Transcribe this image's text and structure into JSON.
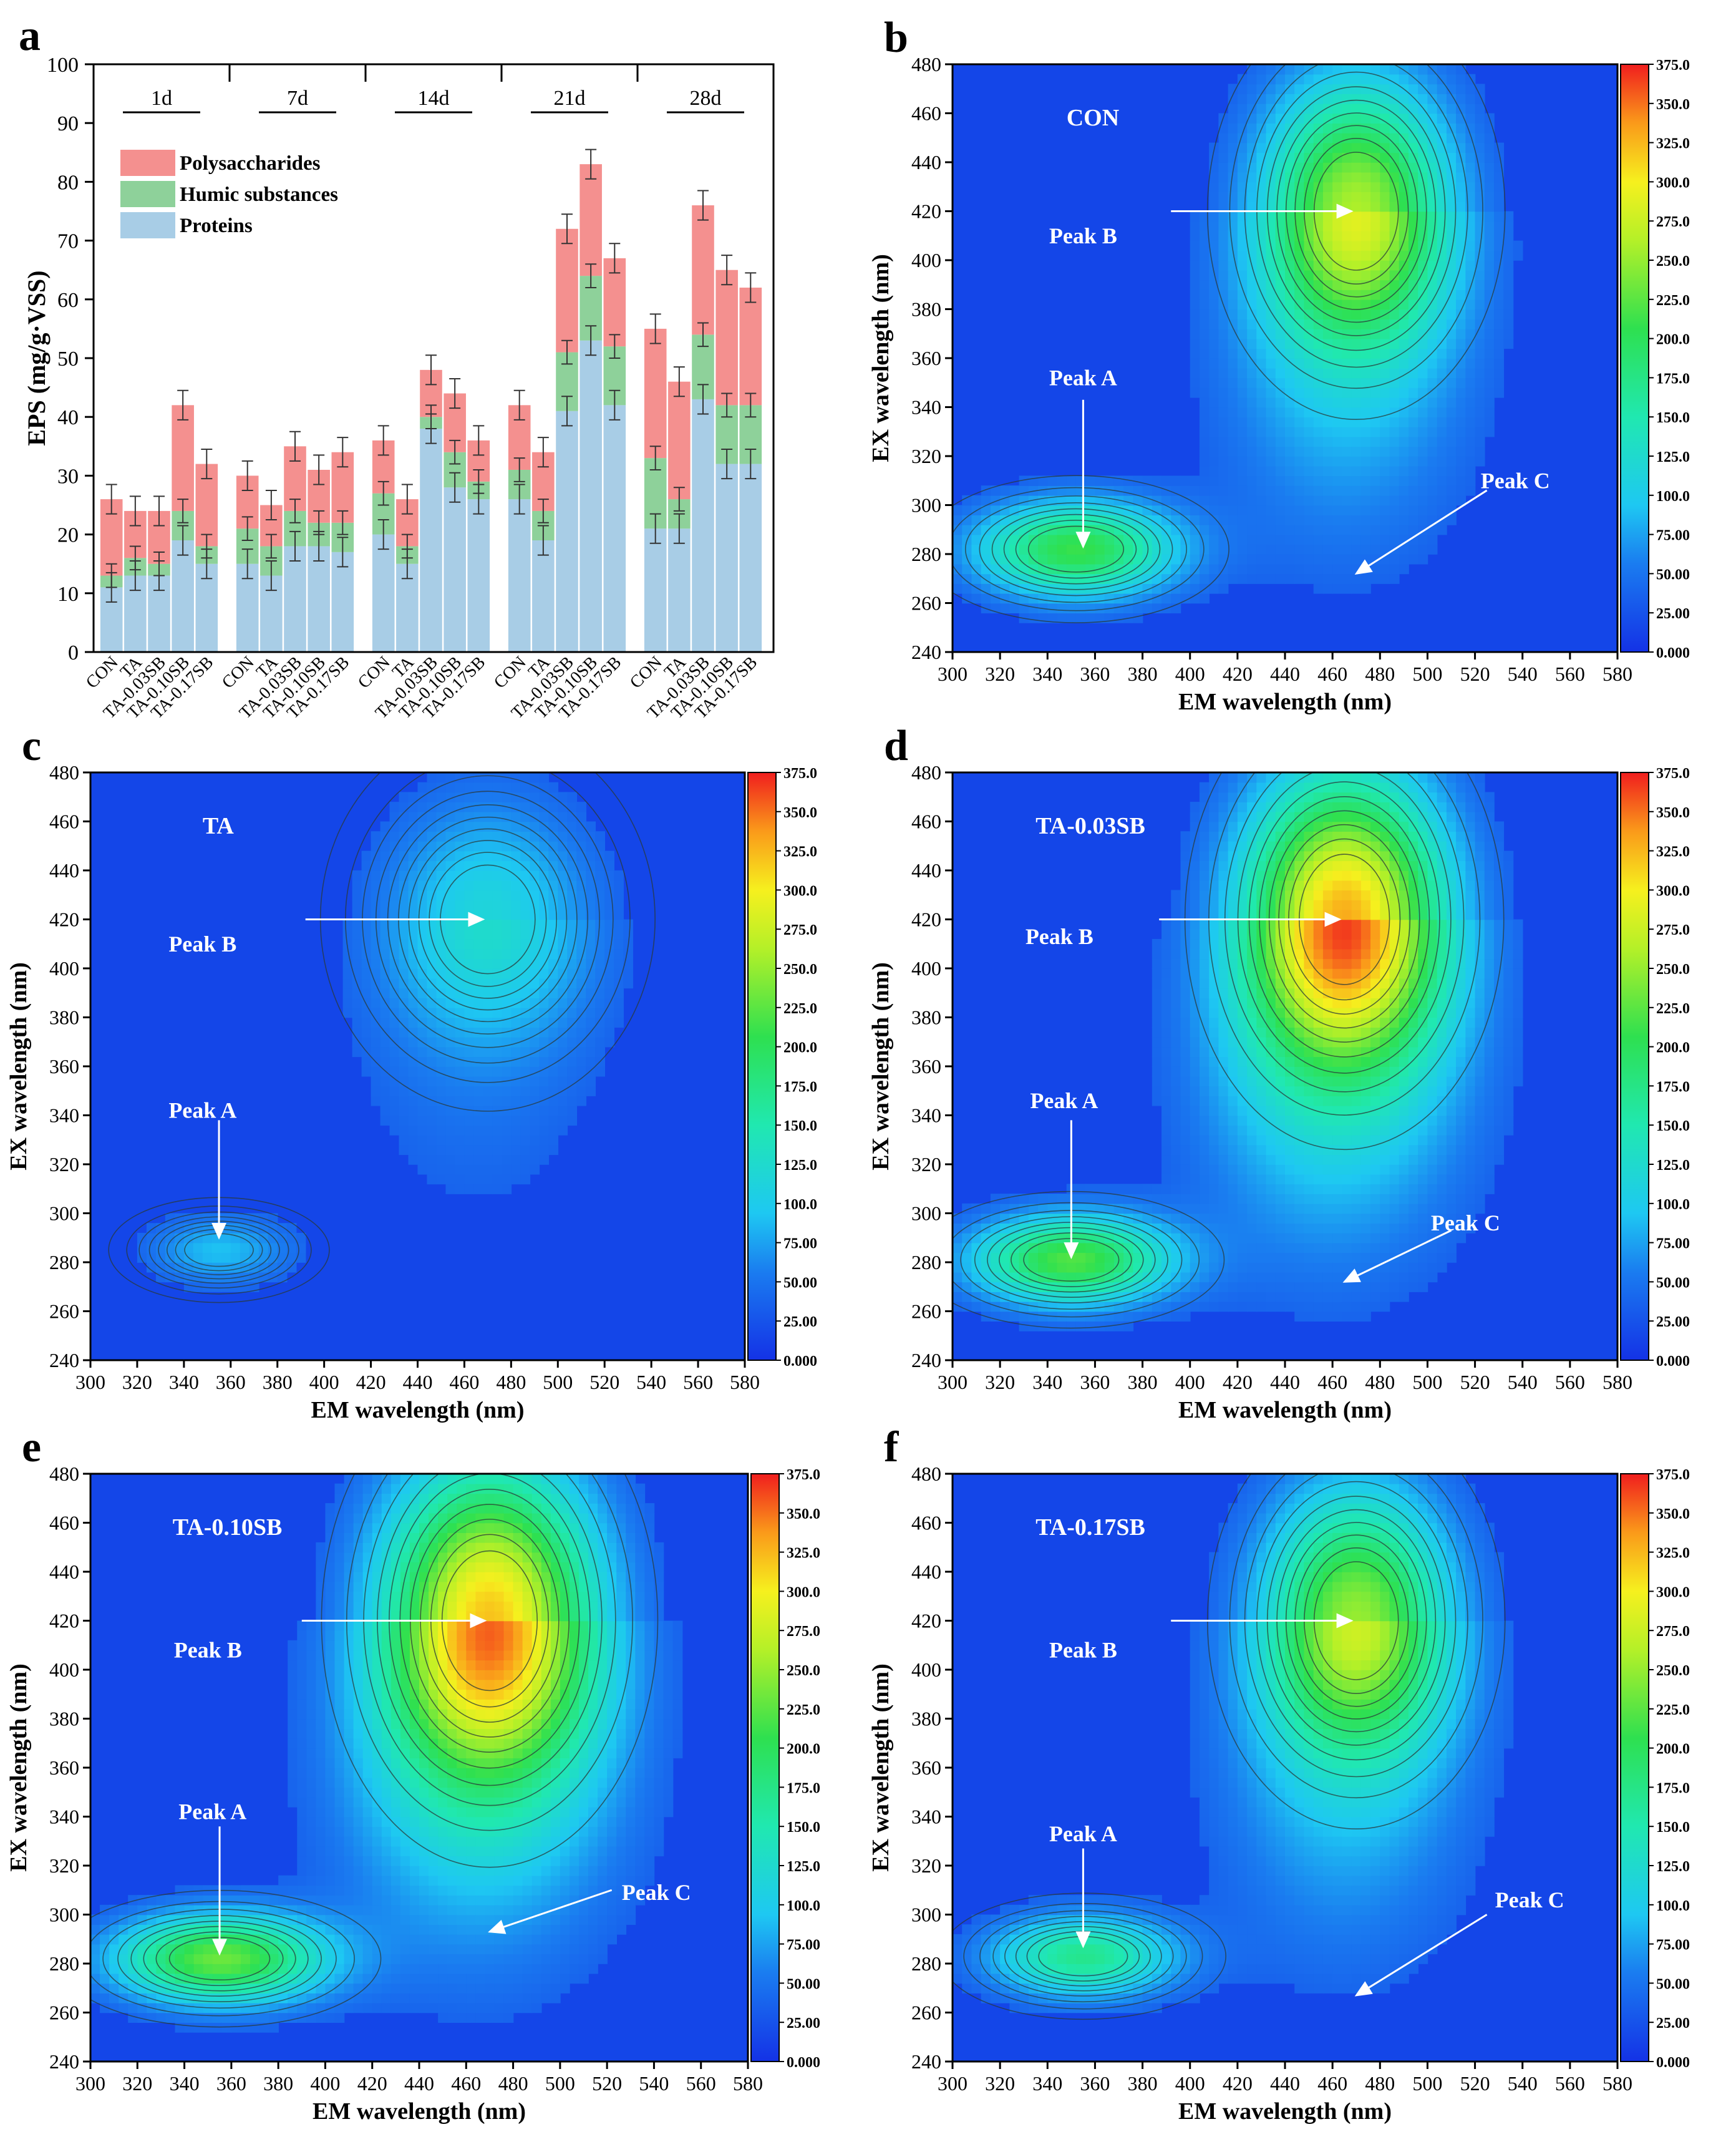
{
  "figure_title": "EPS and 3D-EEM fluorescence spectra",
  "colors": {
    "polysaccharides": "#f4908f",
    "humic": "#8ed19a",
    "proteins": "#a8cde6",
    "axis": "#000000",
    "eem_bg": "#1446e8",
    "arrow": "#ffffff"
  },
  "chart_data": [
    {
      "panel": "a",
      "type": "bar",
      "stacked": true,
      "ylabel": "EPS (mg/g·VSS)",
      "ylim": [
        0,
        100
      ],
      "yticks": [
        0,
        10,
        20,
        30,
        40,
        50,
        60,
        70,
        80,
        90,
        100
      ],
      "legend": [
        "Polysaccharides",
        "Humic substances",
        "Proteins"
      ],
      "legend_position": "top-left",
      "groups": [
        {
          "label": "1d",
          "categories": [
            "CON",
            "TA",
            "TA-0.03SB",
            "TA-0.10SB",
            "TA-0.17SB"
          ],
          "proteins": [
            11,
            13,
            13,
            19,
            15
          ],
          "humic": [
            2,
            3,
            2,
            5,
            3
          ],
          "polysaccharides": [
            13,
            8,
            9,
            18,
            14
          ]
        },
        {
          "label": "7d",
          "categories": [
            "CON",
            "TA",
            "TA-0.03SB",
            "TA-0.10SB",
            "TA-0.17SB"
          ],
          "proteins": [
            15,
            13,
            18,
            18,
            17
          ],
          "humic": [
            6,
            5,
            6,
            4,
            5
          ],
          "polysaccharides": [
            9,
            7,
            11,
            9,
            12
          ]
        },
        {
          "label": "14d",
          "categories": [
            "CON",
            "TA",
            "TA-0.03SB",
            "TA-0.10SB",
            "TA-0.17SB"
          ],
          "proteins": [
            20,
            15,
            38,
            28,
            26
          ],
          "humic": [
            7,
            3,
            2,
            6,
            3
          ],
          "polysaccharides": [
            9,
            8,
            8,
            10,
            7
          ]
        },
        {
          "label": "21d",
          "categories": [
            "CON",
            "TA",
            "TA-0.03SB",
            "TA-0.10SB",
            "TA-0.17SB"
          ],
          "proteins": [
            26,
            19,
            41,
            53,
            42
          ],
          "humic": [
            5,
            5,
            10,
            11,
            10
          ],
          "polysaccharides": [
            11,
            10,
            21,
            19,
            15
          ]
        },
        {
          "label": "28d",
          "categories": [
            "CON",
            "TA",
            "TA-0.03SB",
            "TA-0.10SB",
            "TA-0.17SB"
          ],
          "proteins": [
            21,
            21,
            43,
            32,
            32
          ],
          "humic": [
            12,
            5,
            11,
            10,
            10
          ],
          "polysaccharides": [
            22,
            20,
            22,
            23,
            20
          ]
        }
      ]
    },
    {
      "panel": "b",
      "type": "heatmap",
      "label": "CON",
      "xlabel": "EM wavelength (nm)",
      "ylabel": "EX wavelength (nm)",
      "xlim": [
        300,
        580
      ],
      "ylim": [
        240,
        480
      ],
      "peak_B": {
        "em": 470,
        "ex": 420,
        "intensity": 240,
        "sx": 28,
        "sy": 38
      },
      "peak_A": {
        "em": 352,
        "ex": 282,
        "intensity": 190,
        "sx": 30,
        "sy": 14
      },
      "annotations": [
        {
          "text": "Peak B",
          "text_em": 355,
          "text_ex": 410,
          "arrow_from": [
            392,
            420
          ],
          "arrow_to": [
            468,
            420
          ]
        },
        {
          "text": "Peak A",
          "text_em": 355,
          "text_ex": 352,
          "arrow_from": [
            355,
            343
          ],
          "arrow_to": [
            355,
            283
          ]
        },
        {
          "text": "Peak C",
          "text_em": 537,
          "text_ex": 310,
          "arrow_from": [
            525,
            306
          ],
          "arrow_to": [
            470,
            272
          ]
        }
      ]
    },
    {
      "panel": "c",
      "type": "heatmap",
      "label": "TA",
      "xlabel": "EM wavelength (nm)",
      "ylabel": "EX wavelength (nm)",
      "xlim": [
        300,
        580
      ],
      "ylim": [
        240,
        480
      ],
      "peak_B": {
        "em": 470,
        "ex": 420,
        "intensity": 95,
        "sx": 32,
        "sy": 35
      },
      "peak_A": {
        "em": 355,
        "ex": 285,
        "intensity": 70,
        "sx": 22,
        "sy": 10
      },
      "annotations": [
        {
          "text": "Peak B",
          "text_em": 348,
          "text_ex": 410,
          "arrow_from": [
            392,
            420
          ],
          "arrow_to": [
            468,
            420
          ]
        },
        {
          "text": "Peak A",
          "text_em": 348,
          "text_ex": 342,
          "arrow_from": [
            355,
            338
          ],
          "arrow_to": [
            355,
            290
          ]
        }
      ]
    },
    {
      "panel": "d",
      "type": "heatmap",
      "label": "TA-0.03SB",
      "xlabel": "EM wavelength (nm)",
      "ylabel": "EX wavelength (nm)",
      "xlim": [
        300,
        580
      ],
      "ylim": [
        240,
        480
      ],
      "peak_B": {
        "em": 465,
        "ex": 420,
        "intensity": 310,
        "sx": 30,
        "sy": 42
      },
      "peak_A": {
        "em": 350,
        "ex": 281,
        "intensity": 200,
        "sx": 30,
        "sy": 13
      },
      "annotations": [
        {
          "text": "Peak B",
          "text_em": 345,
          "text_ex": 413,
          "arrow_from": [
            387,
            420
          ],
          "arrow_to": [
            463,
            420
          ]
        },
        {
          "text": "Peak A",
          "text_em": 347,
          "text_ex": 346,
          "arrow_from": [
            350,
            338
          ],
          "arrow_to": [
            350,
            282
          ]
        },
        {
          "text": "Peak C",
          "text_em": 516,
          "text_ex": 296,
          "arrow_from": [
            510,
            293
          ],
          "arrow_to": [
            465,
            272
          ]
        }
      ]
    },
    {
      "panel": "e",
      "type": "heatmap",
      "label": "TA-0.10SB",
      "xlabel": "EM wavelength (nm)",
      "ylabel": "EX wavelength (nm)",
      "xlim": [
        300,
        580
      ],
      "ylim": [
        240,
        480
      ],
      "peak_B": {
        "em": 470,
        "ex": 420,
        "intensity": 300,
        "sx": 32,
        "sy": 45
      },
      "peak_A": {
        "em": 355,
        "ex": 282,
        "intensity": 210,
        "sx": 32,
        "sy": 13
      },
      "annotations": [
        {
          "text": "Peak B",
          "text_em": 350,
          "text_ex": 408,
          "arrow_from": [
            390,
            420
          ],
          "arrow_to": [
            468,
            420
          ]
        },
        {
          "text": "Peak A",
          "text_em": 352,
          "text_ex": 342,
          "arrow_from": [
            355,
            336
          ],
          "arrow_to": [
            355,
            284
          ]
        },
        {
          "text": "Peak C",
          "text_em": 541,
          "text_ex": 309,
          "arrow_from": [
            522,
            310
          ],
          "arrow_to": [
            470,
            293
          ]
        }
      ]
    },
    {
      "panel": "f",
      "type": "heatmap",
      "label": "TA-0.17SB",
      "xlabel": "EM wavelength (nm)",
      "ylabel": "EX wavelength (nm)",
      "xlim": [
        300,
        580
      ],
      "ylim": [
        240,
        480
      ],
      "peak_B": {
        "em": 470,
        "ex": 420,
        "intensity": 230,
        "sx": 28,
        "sy": 38
      },
      "peak_A": {
        "em": 355,
        "ex": 283,
        "intensity": 150,
        "sx": 28,
        "sy": 12
      },
      "annotations": [
        {
          "text": "Peak B",
          "text_em": 355,
          "text_ex": 408,
          "arrow_from": [
            392,
            420
          ],
          "arrow_to": [
            468,
            420
          ]
        },
        {
          "text": "Peak A",
          "text_em": 355,
          "text_ex": 333,
          "arrow_from": [
            355,
            327
          ],
          "arrow_to": [
            355,
            287
          ]
        },
        {
          "text": "Peak C",
          "text_em": 543,
          "text_ex": 306,
          "arrow_from": [
            525,
            300
          ],
          "arrow_to": [
            470,
            267
          ]
        }
      ]
    }
  ],
  "colorbar": {
    "min": 0,
    "max": 375,
    "ticks": [
      "375.0",
      "350.0",
      "325.0",
      "300.0",
      "275.0",
      "250.0",
      "225.0",
      "200.0",
      "175.0",
      "150.0",
      "125.0",
      "100.0",
      "75.00",
      "50.00",
      "25.00",
      "0.000"
    ]
  },
  "eem_axis": {
    "xticks": [
      300,
      320,
      340,
      360,
      380,
      400,
      420,
      440,
      460,
      480,
      500,
      520,
      540,
      560,
      580
    ],
    "yticks": [
      240,
      260,
      280,
      300,
      320,
      340,
      360,
      380,
      400,
      420,
      440,
      460,
      480
    ]
  }
}
